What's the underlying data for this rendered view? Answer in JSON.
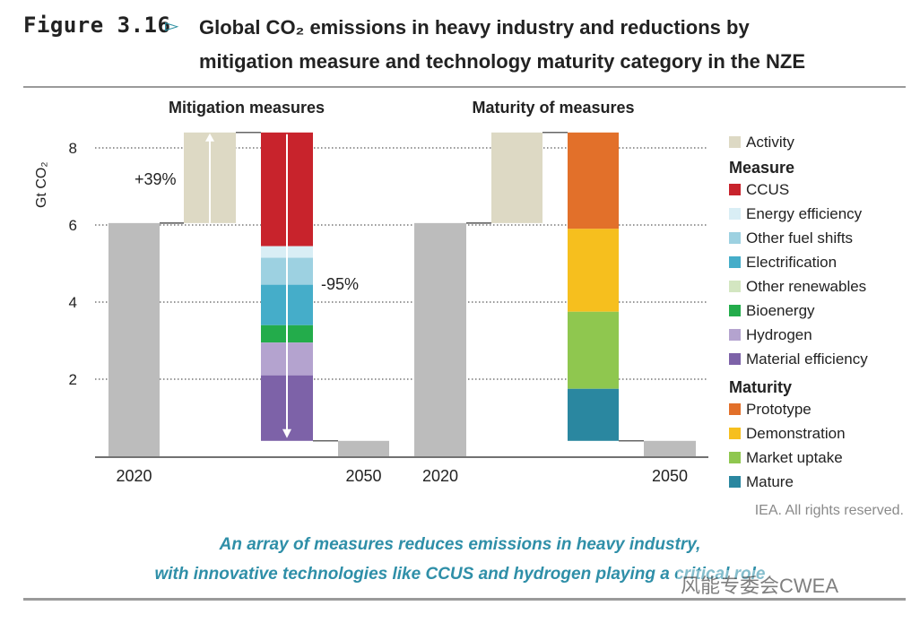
{
  "figure": {
    "number": "Figure 3.16",
    "arrow": "▻",
    "title_line1": "Global CO₂ emissions in heavy industry and reductions by",
    "title_line2": "mitigation measure and technology maturity category in the NZE"
  },
  "credit": "IEA. All rights reserved.",
  "caption": {
    "line1": "An array of measures reduces emissions in heavy industry,",
    "line2": "with innovative technologies like CCUS and hydrogen playing a critical role"
  },
  "watermark": "风能专委会CWEA",
  "colors": {
    "base": "#bcbcbc",
    "activity": "#ddd9c4",
    "ccus": "#c8232c",
    "energy_efficiency": "#d9eef5",
    "other_fuel_shifts": "#9dd1e1",
    "electrification": "#45adc9",
    "other_renewables": "#d3e6c1",
    "bioenergy": "#23ac4b",
    "hydrogen": "#b4a3cf",
    "material_efficiency": "#7d62a8",
    "prototype": "#e2702a",
    "demonstration": "#f6bf1e",
    "market_uptake": "#8fc74f",
    "mature": "#2a87a0"
  },
  "chart_data": {
    "type": "bar",
    "subtype": "waterfall",
    "ylabel": "Gt CO₂",
    "yticks": [
      2,
      4,
      6,
      8
    ],
    "ylim": [
      0,
      8.5
    ],
    "grid": true,
    "panels": [
      {
        "title": "Mitigation measures",
        "x_labels": [
          "2020",
          "2050"
        ],
        "start_value": 6.05,
        "activity_increase": 2.35,
        "peak_value": 8.4,
        "end_value": 0.4,
        "increase_label": "+39%",
        "decrease_label": "-95%",
        "reductions": [
          {
            "name": "CCUS",
            "value": 2.95,
            "color_key": "ccus"
          },
          {
            "name": "Energy efficiency",
            "value": 0.3,
            "color_key": "energy_efficiency"
          },
          {
            "name": "Other fuel shifts",
            "value": 0.7,
            "color_key": "other_fuel_shifts"
          },
          {
            "name": "Electrification",
            "value": 1.05,
            "color_key": "electrification"
          },
          {
            "name": "Other renewables",
            "value": 0.0,
            "color_key": "other_renewables"
          },
          {
            "name": "Bioenergy",
            "value": 0.45,
            "color_key": "bioenergy"
          },
          {
            "name": "Hydrogen",
            "value": 0.85,
            "color_key": "hydrogen"
          },
          {
            "name": "Material efficiency",
            "value": 1.7,
            "color_key": "material_efficiency"
          }
        ]
      },
      {
        "title": "Maturity of measures",
        "x_labels": [
          "2020",
          "2050"
        ],
        "start_value": 6.05,
        "activity_increase": 2.35,
        "peak_value": 8.4,
        "end_value": 0.4,
        "reductions": [
          {
            "name": "Prototype",
            "value": 2.5,
            "color_key": "prototype"
          },
          {
            "name": "Demonstration",
            "value": 2.15,
            "color_key": "demonstration"
          },
          {
            "name": "Market uptake",
            "value": 2.0,
            "color_key": "market_uptake"
          },
          {
            "name": "Mature",
            "value": 1.35,
            "color_key": "mature"
          }
        ]
      }
    ],
    "legend": {
      "position": "right",
      "activity": {
        "name": "Activity",
        "color_key": "activity"
      },
      "groups": [
        {
          "heading": "Measure",
          "items": [
            {
              "name": "CCUS",
              "color_key": "ccus"
            },
            {
              "name": "Energy efficiency",
              "color_key": "energy_efficiency"
            },
            {
              "name": "Other fuel shifts",
              "color_key": "other_fuel_shifts"
            },
            {
              "name": "Electrification",
              "color_key": "electrification"
            },
            {
              "name": "Other renewables",
              "color_key": "other_renewables"
            },
            {
              "name": "Bioenergy",
              "color_key": "bioenergy"
            },
            {
              "name": "Hydrogen",
              "color_key": "hydrogen"
            },
            {
              "name": "Material efficiency",
              "color_key": "material_efficiency"
            }
          ]
        },
        {
          "heading": "Maturity",
          "items": [
            {
              "name": "Prototype",
              "color_key": "prototype"
            },
            {
              "name": "Demonstration",
              "color_key": "demonstration"
            },
            {
              "name": "Market uptake",
              "color_key": "market_uptake"
            },
            {
              "name": "Mature",
              "color_key": "mature"
            }
          ]
        }
      ]
    }
  }
}
